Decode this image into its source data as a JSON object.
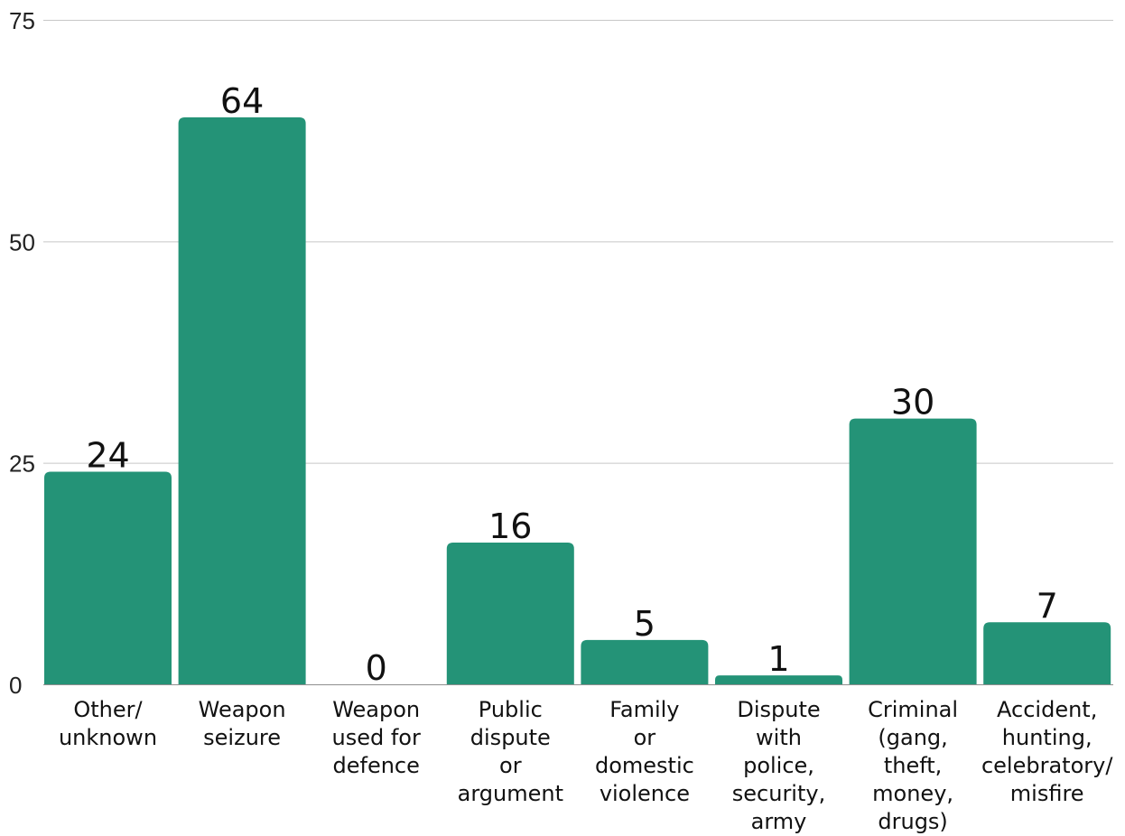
{
  "chart_data": {
    "type": "bar",
    "categories": [
      "Other/\nunknown",
      "Weapon\nseizure",
      "Weapon\nused for\ndefence",
      "Public\ndispute\nor\nargument",
      "Family\nor\ndomestic\nviolence",
      "Dispute\nwith\npolice,\nsecurity,\narmy",
      "Criminal\n(gang,\ntheft,\nmoney,\ndrugs)",
      "Accident,\nhunting,\ncelebratory/\nmisfire"
    ],
    "values": [
      24,
      64,
      0,
      16,
      5,
      1,
      30,
      7
    ],
    "ylim": [
      0,
      75
    ],
    "yticks": [
      0,
      25,
      50,
      75
    ],
    "grid": true,
    "bar_color": "#249377",
    "title": "",
    "xlabel": "",
    "ylabel": ""
  }
}
